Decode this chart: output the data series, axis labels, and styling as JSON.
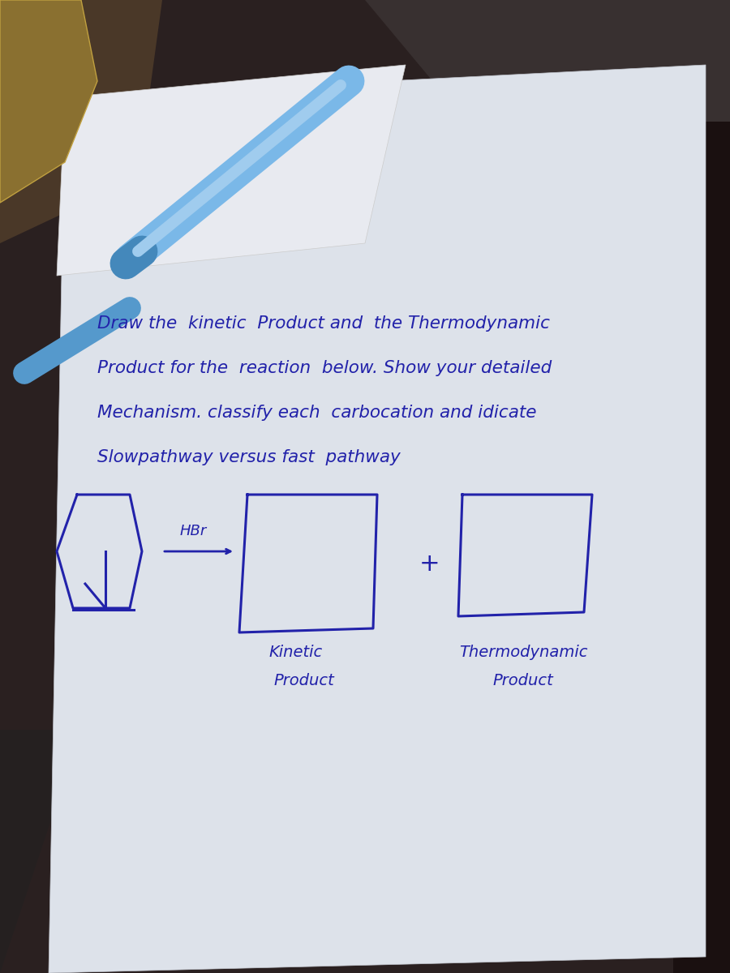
{
  "bg_color": "#2a2020",
  "paper_color": "#dde0e8",
  "pen_color": "#2222aa",
  "pen_color_light": "#6699cc",
  "text_lines": [
    "Draw the  kinetic  Product and  the Thermodynamic",
    "Product for the  reaction  below. Show your detailed",
    "Mechanism. classify each  carbocation and idicate",
    "Slowpathway versus fast  pathway"
  ],
  "hbr_label": "HBr",
  "kinetic_label_1": "Kinetic",
  "kinetic_label_2": "Product",
  "thermo_label_1": "Thermodynamic",
  "thermo_label_2": "Product",
  "plus_sign": "+"
}
